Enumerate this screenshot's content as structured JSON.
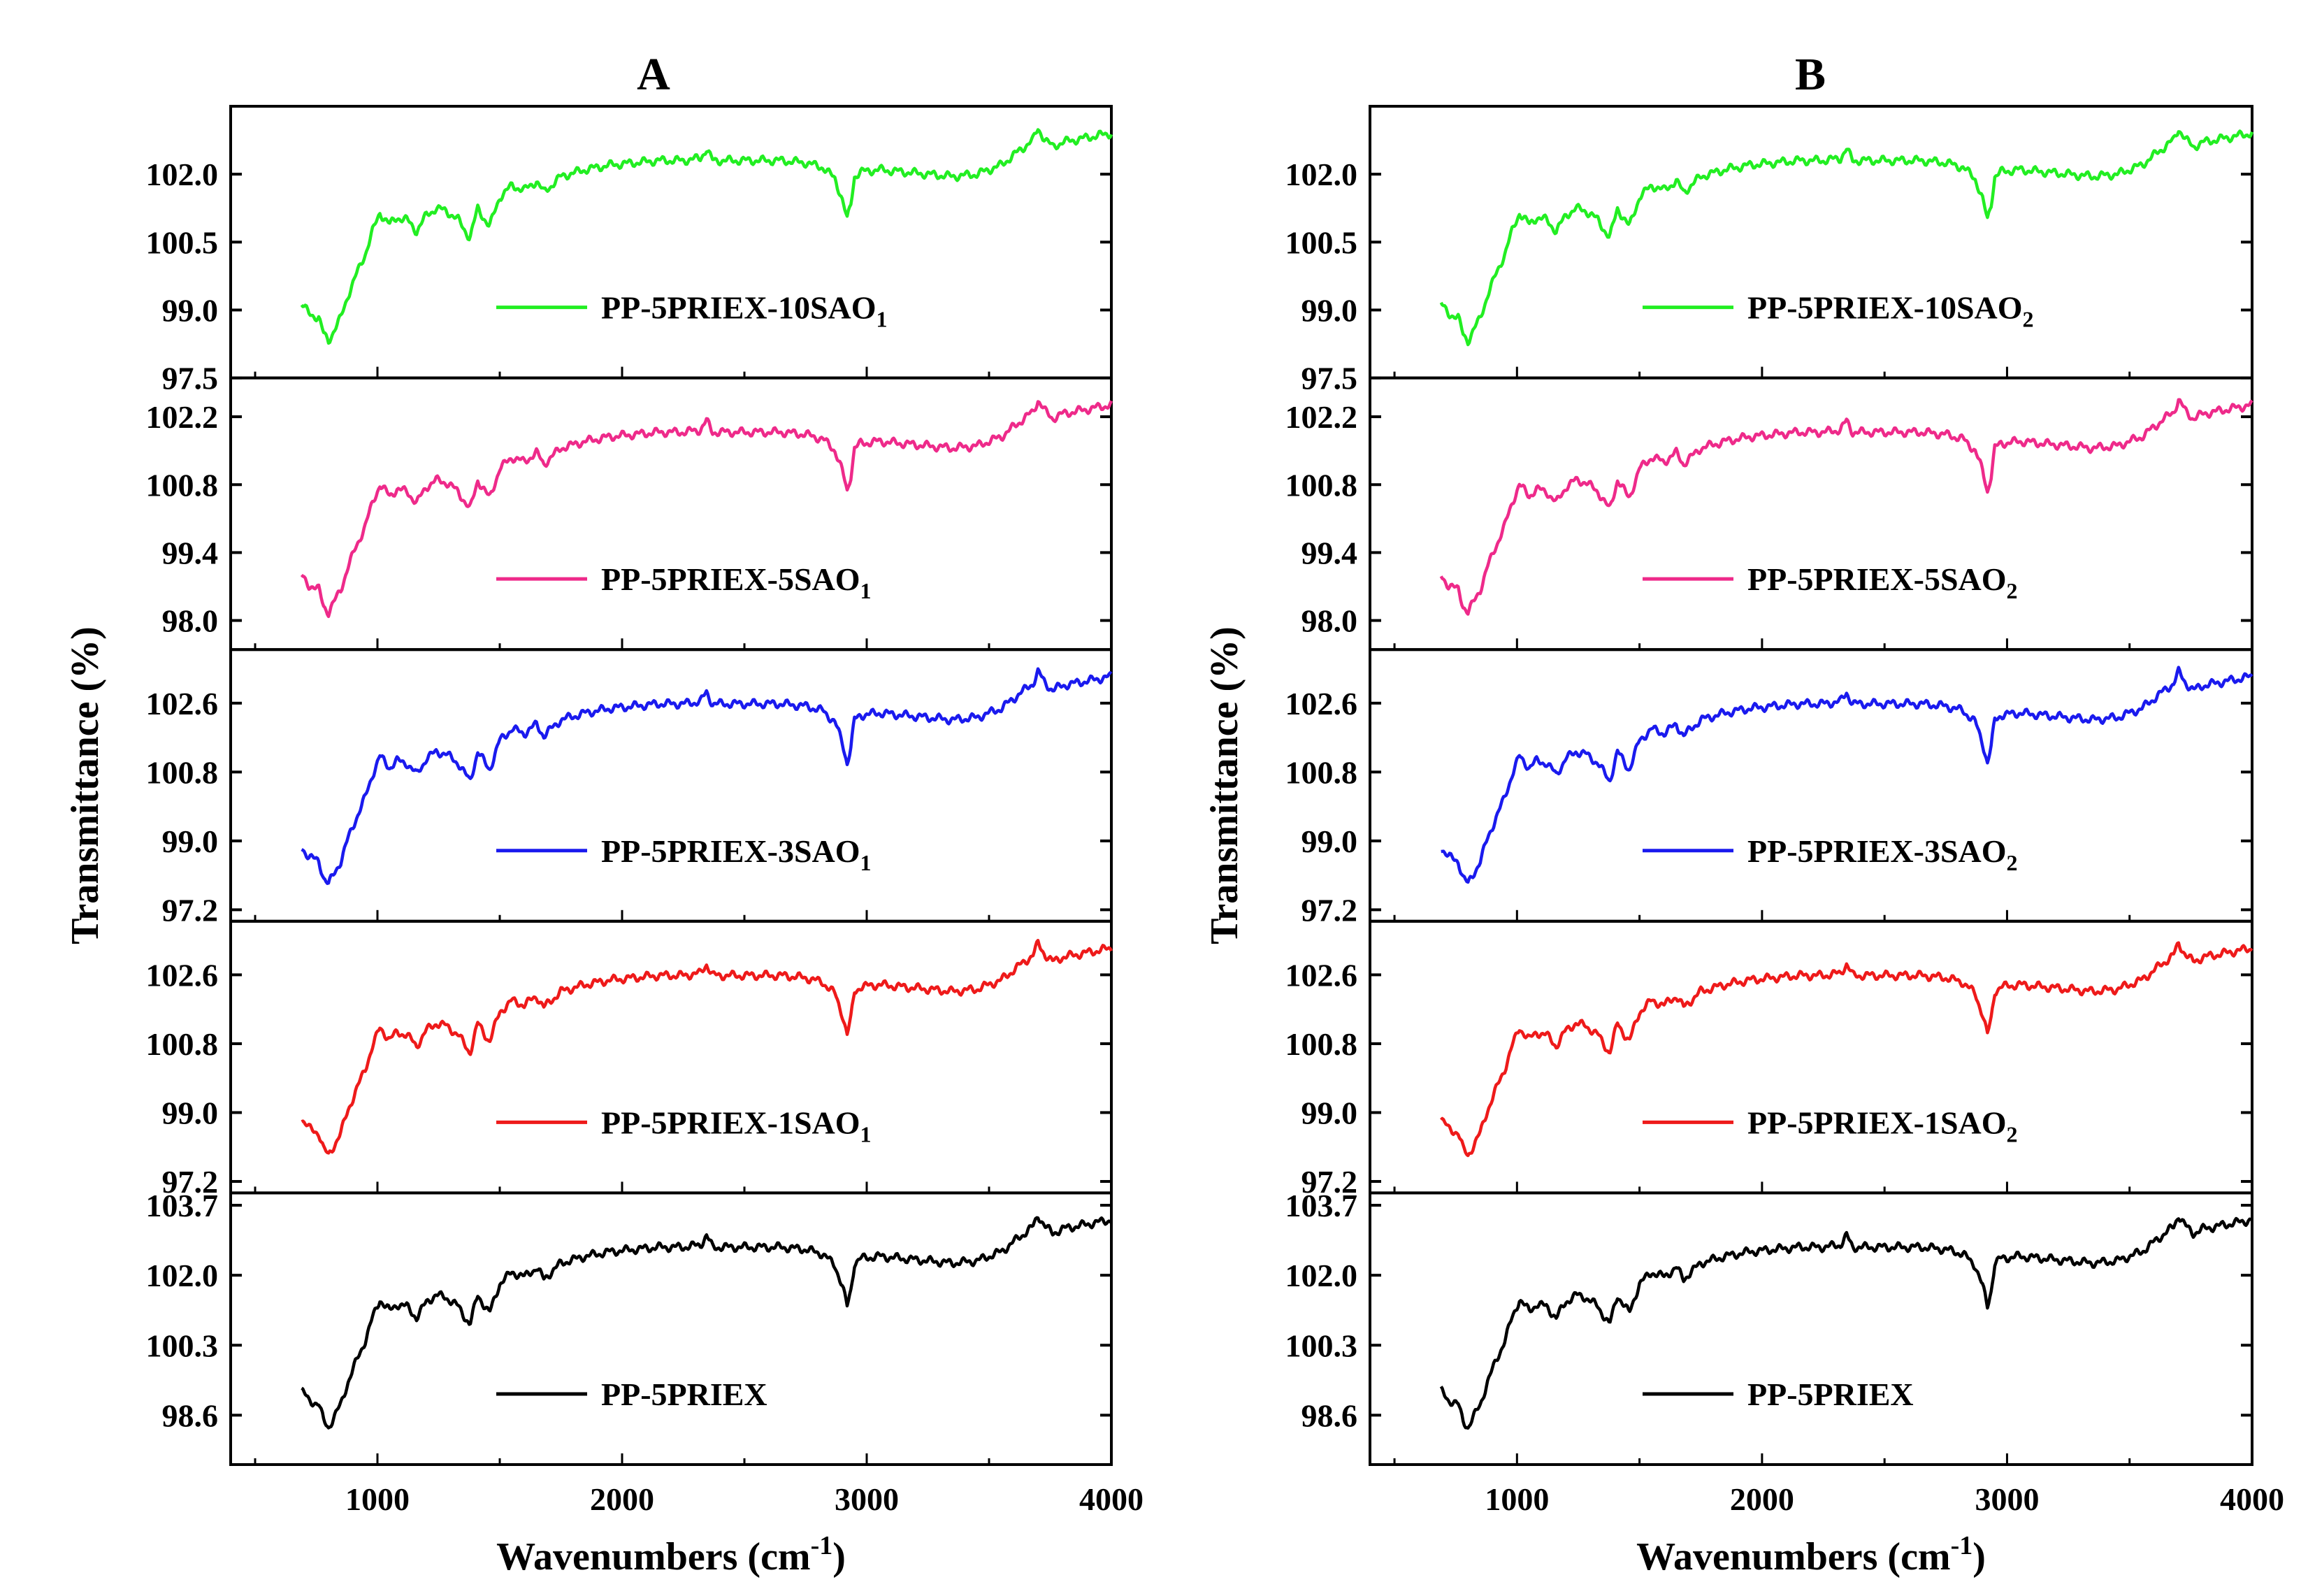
{
  "chart_data": [
    {
      "type": "line",
      "panel_label": "A",
      "xlabel": "Wavenumbers (cm",
      "xlabel_sup": "-1",
      "xlabel_end": ")",
      "ylabel": "Transmittance (%)",
      "xlim": [
        400,
        4000
      ],
      "xticks": [
        1000,
        2000,
        3000,
        4000
      ],
      "grid": false,
      "subplots": [
        {
          "name": "PP-5PRIEX-10SAO",
          "sub": "1",
          "color": "#22ee22",
          "ylim": [
            97.5,
            103.5
          ],
          "yticks": [
            "97.5",
            "99.0",
            "100.5",
            "102.0"
          ]
        },
        {
          "name": "PP-5PRIEX-5SAO",
          "sub": "1",
          "color": "#ee2a8a",
          "ylim": [
            97.4,
            103.0
          ],
          "yticks": [
            "98.0",
            "99.4",
            "100.8",
            "102.2"
          ]
        },
        {
          "name": "PP-5PRIEX-3SAO",
          "sub": "1",
          "color": "#1a1aee",
          "ylim": [
            96.9,
            104.0
          ],
          "yticks": [
            "97.2",
            "99.0",
            "100.8",
            "102.6"
          ]
        },
        {
          "name": "PP-5PRIEX-1SAO",
          "sub": "1",
          "color": "#ee1a1a",
          "ylim": [
            96.9,
            104.0
          ],
          "yticks": [
            "97.2",
            "99.0",
            "100.8",
            "102.6"
          ]
        },
        {
          "name": "PP-5PRIEX",
          "sub": "",
          "color": "#000000",
          "ylim": [
            97.4,
            104.0
          ],
          "yticks": [
            "98.6",
            "100.3",
            "102.0",
            "103.7"
          ]
        }
      ]
    },
    {
      "type": "line",
      "panel_label": "B",
      "xlabel": "Wavenumbers (cm",
      "xlabel_sup": "-1",
      "xlabel_end": ")",
      "ylabel": "Transmittance (%)",
      "xlim": [
        400,
        4000
      ],
      "xticks": [
        1000,
        2000,
        3000,
        4000
      ],
      "grid": false,
      "subplots": [
        {
          "name": "PP-5PRIEX-10SAO",
          "sub": "2",
          "color": "#22ee22",
          "ylim": [
            97.5,
            103.5
          ],
          "yticks": [
            "97.5",
            "99.0",
            "100.5",
            "102.0"
          ]
        },
        {
          "name": "PP-5PRIEX-5SAO",
          "sub": "2",
          "color": "#ee2a8a",
          "ylim": [
            97.4,
            103.0
          ],
          "yticks": [
            "98.0",
            "99.4",
            "100.8",
            "102.2"
          ]
        },
        {
          "name": "PP-5PRIEX-3SAO",
          "sub": "2",
          "color": "#1a1aee",
          "ylim": [
            96.9,
            104.0
          ],
          "yticks": [
            "97.2",
            "99.0",
            "100.8",
            "102.6"
          ]
        },
        {
          "name": "PP-5PRIEX-1SAO",
          "sub": "2",
          "color": "#ee1a1a",
          "ylim": [
            96.9,
            104.0
          ],
          "yticks": [
            "97.2",
            "99.0",
            "100.8",
            "102.6"
          ]
        },
        {
          "name": "PP-5PRIEX",
          "sub": "",
          "color": "#000000",
          "ylim": [
            97.4,
            104.0
          ],
          "yticks": [
            "98.6",
            "100.3",
            "102.0",
            "103.7"
          ]
        }
      ]
    }
  ],
  "spectrum_shape": {
    "x": [
      690,
      720,
      760,
      780,
      800,
      820,
      850,
      880,
      910,
      950,
      980,
      1010,
      1050,
      1080,
      1120,
      1160,
      1200,
      1240,
      1280,
      1330,
      1378,
      1410,
      1458,
      1500,
      1550,
      1600,
      1650,
      1680,
      1750,
      1850,
      1950,
      2050,
      2150,
      2250,
      2320,
      2345,
      2370,
      2450,
      2550,
      2650,
      2750,
      2820,
      2870,
      2900,
      2920,
      2935,
      2950,
      2975,
      3050,
      3150,
      3250,
      3350,
      3450,
      3550,
      3620,
      3680,
      3700,
      3730,
      3760,
      3800,
      3900,
      4000
    ],
    "y": [
      0.18,
      0.14,
      0.12,
      0.05,
      0.02,
      0.06,
      0.12,
      0.22,
      0.3,
      0.4,
      0.5,
      0.58,
      0.53,
      0.56,
      0.55,
      0.5,
      0.57,
      0.6,
      0.59,
      0.55,
      0.47,
      0.6,
      0.52,
      0.65,
      0.7,
      0.68,
      0.72,
      0.67,
      0.74,
      0.77,
      0.79,
      0.8,
      0.81,
      0.81,
      0.82,
      0.86,
      0.81,
      0.81,
      0.81,
      0.81,
      0.8,
      0.78,
      0.73,
      0.64,
      0.55,
      0.62,
      0.74,
      0.76,
      0.77,
      0.76,
      0.75,
      0.74,
      0.75,
      0.79,
      0.85,
      0.9,
      0.95,
      0.9,
      0.87,
      0.89,
      0.91,
      0.93
    ]
  }
}
